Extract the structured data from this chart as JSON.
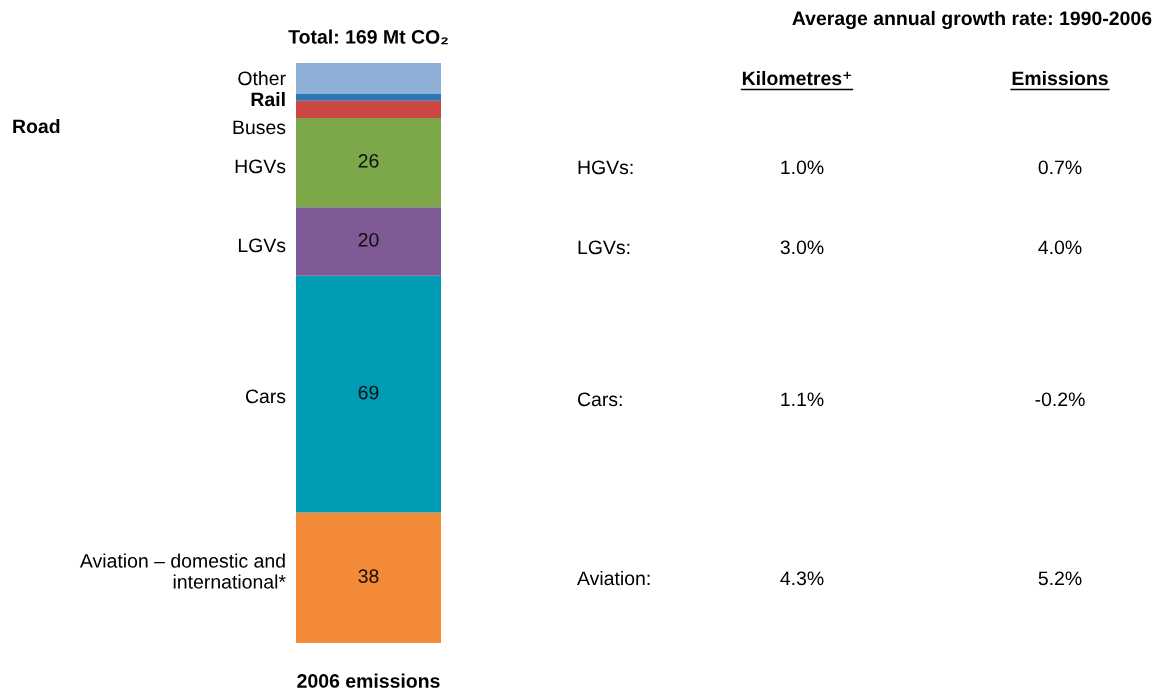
{
  "chart_data": {
    "type": "bar",
    "stacked": true,
    "title": "Total: 169 Mt CO₂",
    "categories": [
      "2006 emissions"
    ],
    "ylim": [
      0,
      169
    ],
    "series": [
      {
        "name": "Aviation – domestic and international*",
        "color": "#f28a38",
        "values": [
          38
        ],
        "value_labels": [
          "38"
        ]
      },
      {
        "name": "Cars",
        "color": "#009bb5",
        "values": [
          69
        ],
        "value_labels": [
          "69"
        ]
      },
      {
        "name": "LGVs",
        "color": "#7e5a96",
        "values": [
          20
        ],
        "value_labels": [
          "20"
        ]
      },
      {
        "name": "HGVs",
        "color": "#7da84a",
        "values": [
          26
        ],
        "value_labels": [
          "26"
        ]
      },
      {
        "name": "Buses",
        "color": "#cc4643",
        "values": [
          5
        ]
      },
      {
        "name": "Rail",
        "color": "#2e75b6",
        "values": [
          2
        ]
      },
      {
        "name": "Other",
        "color": "#8eb0d6",
        "values": [
          9
        ]
      }
    ],
    "annotations": [
      "Road",
      "Average annual growth rate: 1990-2006",
      "Kilometres⁺",
      "Emissions",
      "HGVs:",
      "1.0%",
      "0.7%",
      "LGVs:",
      "3.0%",
      "4.0%",
      "Cars:",
      "1.1%",
      "-0.2%",
      "Aviation:",
      "4.3%",
      "5.2%"
    ],
    "grid": false,
    "legend": false
  }
}
